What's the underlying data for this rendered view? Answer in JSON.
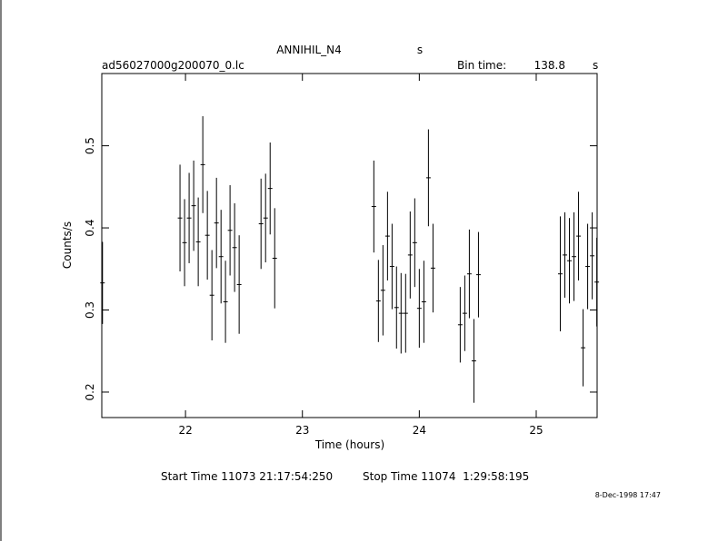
{
  "chart_data": {
    "type": "errorbar",
    "title": "ANNIHIL_N4",
    "title_unit": "s",
    "file_name": "ad56027000g200070_0.lc",
    "bin_time_label": "Bin time:",
    "bin_time": 138.8,
    "bin_time_unit": "s",
    "y_label": "Counts/s",
    "x_label": "Time (hours)",
    "start_time": "Start Time 11073 21:17:54:250",
    "stop_time": "Stop Time 11074  1:29:58:195",
    "timestamp": "8-Dec-1998 17:47",
    "color": "#000000",
    "xlim": [
      21.284,
      25.521
    ],
    "ylim": [
      0.169,
      0.588
    ],
    "xticks": [
      22,
      23,
      24,
      25
    ],
    "yticks": [
      0.2,
      0.3,
      0.4,
      0.5
    ],
    "x": [
      21.29,
      21.953,
      21.992,
      22.031,
      22.07,
      22.109,
      22.148,
      22.187,
      22.226,
      22.265,
      22.304,
      22.342,
      22.381,
      22.42,
      22.459,
      22.646,
      22.685,
      22.724,
      22.763,
      23.611,
      23.65,
      23.689,
      23.728,
      23.767,
      23.805,
      23.844,
      23.883,
      23.922,
      23.961,
      24.0,
      24.039,
      24.078,
      24.117,
      24.35,
      24.389,
      24.428,
      24.467,
      24.506,
      25.206,
      25.245,
      25.284,
      25.323,
      25.362,
      25.401,
      25.44,
      25.479,
      25.518
    ],
    "values": [
      0.333,
      0.412,
      0.382,
      0.412,
      0.427,
      0.383,
      0.477,
      0.391,
      0.318,
      0.406,
      0.365,
      0.31,
      0.397,
      0.376,
      0.331,
      0.405,
      0.412,
      0.448,
      0.363,
      0.426,
      0.311,
      0.324,
      0.39,
      0.353,
      0.303,
      0.296,
      0.296,
      0.367,
      0.382,
      0.302,
      0.31,
      0.461,
      0.351,
      0.282,
      0.296,
      0.344,
      0.238,
      0.343,
      0.344,
      0.367,
      0.36,
      0.365,
      0.39,
      0.254,
      0.353,
      0.366,
      0.334
    ],
    "errors": [
      0.05,
      0.065,
      0.053,
      0.055,
      0.055,
      0.054,
      0.059,
      0.054,
      0.055,
      0.055,
      0.057,
      0.05,
      0.055,
      0.054,
      0.06,
      0.055,
      0.054,
      0.056,
      0.061,
      0.056,
      0.05,
      0.055,
      0.054,
      0.052,
      0.05,
      0.049,
      0.048,
      0.053,
      0.054,
      0.048,
      0.05,
      0.059,
      0.054,
      0.046,
      0.046,
      0.054,
      0.051,
      0.052,
      0.07,
      0.052,
      0.052,
      0.054,
      0.054,
      0.047,
      0.052,
      0.053,
      0.054
    ]
  }
}
